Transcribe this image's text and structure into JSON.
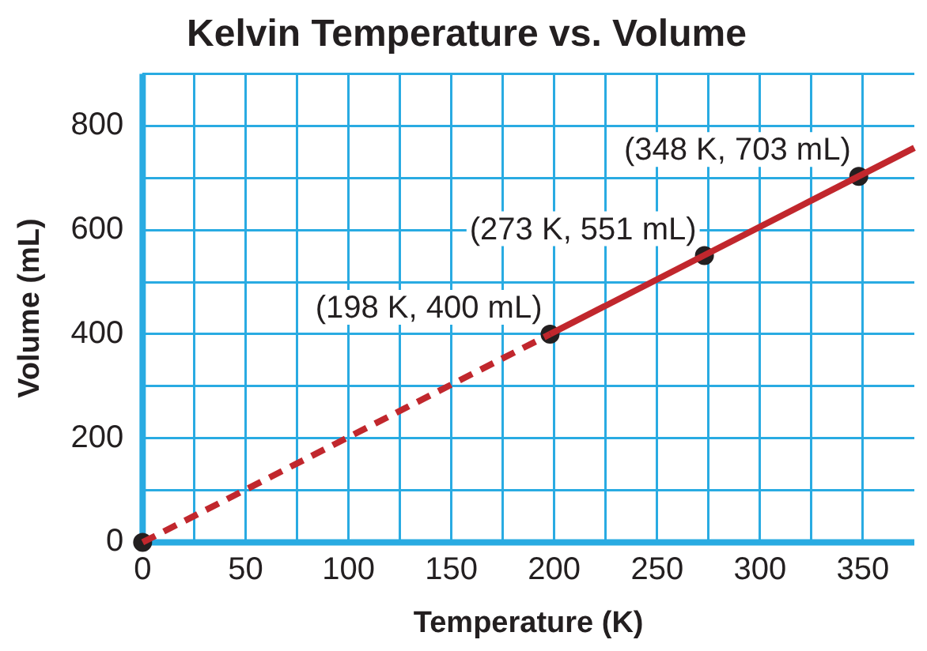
{
  "chart_data": {
    "type": "line",
    "title": "Kelvin Temperature vs. Volume",
    "xlabel": "Temperature (K)",
    "ylabel": "Volume (mL)",
    "xlim": [
      0,
      375
    ],
    "ylim": [
      0,
      900
    ],
    "xticks": [
      0,
      {
        "value": 25,
        "label": null
      },
      50,
      {
        "value": 75,
        "label": null
      },
      100,
      {
        "value": 125,
        "label": null
      },
      150,
      {
        "value": 175,
        "label": null
      },
      200,
      {
        "value": 225,
        "label": null
      },
      250,
      {
        "value": 275,
        "label": null
      },
      300,
      {
        "value": 325,
        "label": null
      },
      350
    ],
    "yticks": [
      0,
      {
        "value": 100,
        "label": null
      },
      200,
      {
        "value": 300,
        "label": null
      },
      400,
      {
        "value": 500,
        "label": null
      },
      600,
      {
        "value": 700,
        "label": null
      },
      800,
      {
        "value": 900,
        "label": null
      }
    ],
    "grid": true,
    "legend": false,
    "series": [
      {
        "color": "#c1272d",
        "x": [
          0,
          198
        ],
        "values": [
          0,
          400
        ],
        "line_style": "dashed",
        "marker": "none"
      },
      {
        "color": "#c1272d",
        "x": [
          198,
          375
        ],
        "values": [
          400,
          758
        ],
        "line_style": "solid",
        "marker": "none"
      },
      {
        "type": "scatter",
        "color": "#231f20",
        "x": [
          0,
          198,
          273,
          348
        ],
        "values": [
          0,
          400,
          551,
          703
        ],
        "marker": "circle"
      }
    ],
    "annotations": [
      {
        "text": "(198 K, 400 mL)",
        "x": 198,
        "y": 400
      },
      {
        "text": "(273 K, 551 mL)",
        "x": 273,
        "y": 551
      },
      {
        "text": "(348 K, 703 mL)",
        "x": 348,
        "y": 703
      }
    ]
  }
}
